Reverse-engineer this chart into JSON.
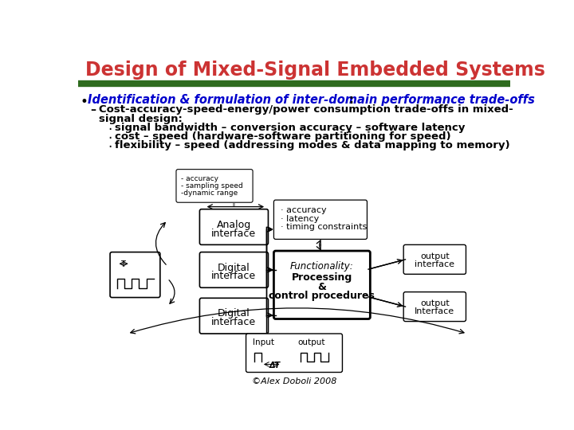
{
  "title": "Design of Mixed-Signal Embedded Systems",
  "title_color": "#CC3333",
  "title_fontsize": 18,
  "divider_color": "#2E6B1E",
  "bg_color": "#FFFFFF",
  "bullet_text": "Identification & formulation of inter-domain performance trade-offs",
  "bullet_color": "#0000CC",
  "copyright": "©Alex Doboli 2008"
}
